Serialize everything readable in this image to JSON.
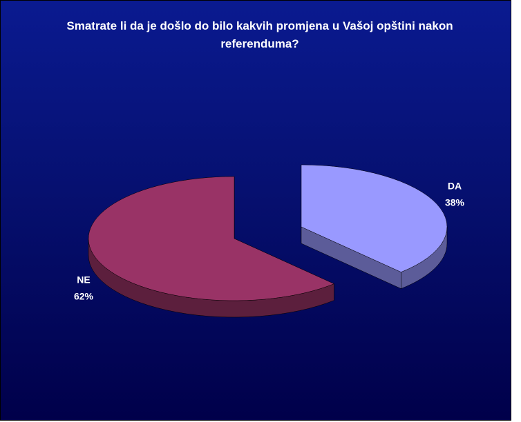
{
  "chart_data": {
    "type": "pie",
    "title": "Smatrate li da je došlo do bilo kakvih promjena u Vašoj opštini nakon referenduma?",
    "categories": [
      "DA",
      "NE"
    ],
    "values": [
      38,
      62
    ],
    "value_labels": [
      "38%",
      "62%"
    ],
    "colors": [
      "#9999ff",
      "#993366"
    ]
  }
}
